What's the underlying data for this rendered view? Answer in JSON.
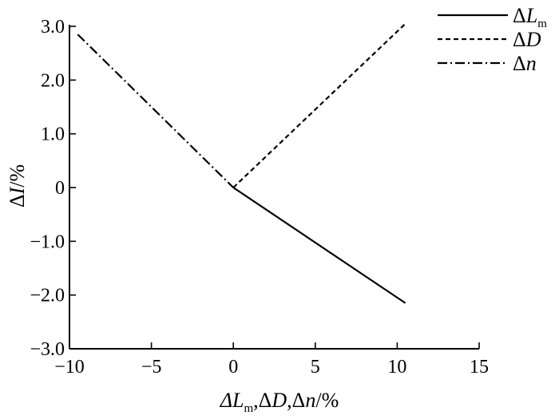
{
  "chart_data": {
    "type": "line",
    "title": "",
    "xlabel": "ΔLm,ΔD,Δn/%",
    "ylabel": "ΔI/%",
    "xlim": [
      -10,
      15
    ],
    "ylim": [
      -3.0,
      3.0
    ],
    "xticks": [
      -10,
      -5,
      0,
      5,
      10,
      15
    ],
    "yticks": [
      -3.0,
      -2.0,
      -1.0,
      0,
      1.0,
      2.0,
      3.0
    ],
    "xtick_labels": [
      "−10",
      "−5",
      "0",
      "5",
      "10",
      "15"
    ],
    "ytick_labels": [
      "−3.0",
      "−2.0",
      "−1.0",
      "0",
      "1.0",
      "2.0",
      "3.0"
    ],
    "grid": false,
    "legend_position": "top-right",
    "series": [
      {
        "name": "ΔLm",
        "style": "solid",
        "x": [
          0,
          10.5
        ],
        "y": [
          0,
          -2.15
        ]
      },
      {
        "name": "ΔD",
        "style": "dashed",
        "x": [
          0,
          10.5
        ],
        "y": [
          0,
          3.05
        ]
      },
      {
        "name": "Δn",
        "style": "dashdot",
        "x": [
          -9.5,
          0
        ],
        "y": [
          2.85,
          0
        ]
      }
    ]
  }
}
